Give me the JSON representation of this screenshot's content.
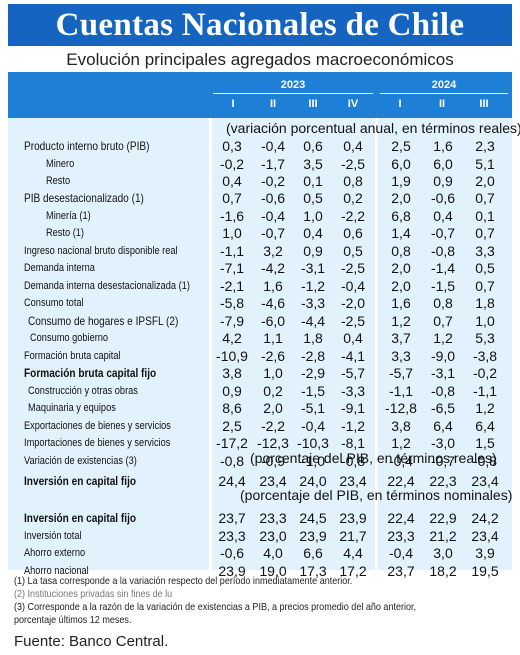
{
  "title": "Cuentas Nacionales de Chile",
  "subtitle": "Evolución principales agregados macroeconómicos",
  "years": [
    "2023",
    "2024"
  ],
  "quarters_2023": [
    "I",
    "II",
    "III",
    "IV"
  ],
  "quarters_2024": [
    "I",
    "II",
    "III"
  ],
  "units": {
    "var": "(variación porcentual anual, en términos reales)",
    "real": "(porcentaje del PIB, en términos reales)",
    "nominal": "(porcentaje del PIB, en términos nominales)"
  },
  "rows": [
    {
      "label": "Producto interno bruto (PIB)",
      "values": [
        "0,3",
        "-0,4",
        "0,6",
        "0,4",
        "2,5",
        "1,6",
        "2,3"
      ]
    },
    {
      "label": "Minero",
      "values": [
        "-0,2",
        "-1,7",
        "3,5",
        "-2,5",
        "6,0",
        "6,0",
        "5,1"
      ]
    },
    {
      "label": "Resto",
      "values": [
        "0,4",
        "-0,2",
        "0,1",
        "0,8",
        "1,9",
        "0,9",
        "2,0"
      ]
    },
    {
      "label": "PIB desestacionalizado (1)",
      "values": [
        "0,7",
        "-0,6",
        "0,5",
        "0,2",
        "2,0",
        "-0,6",
        "0,7"
      ]
    },
    {
      "label": "Minería (1)",
      "values": [
        "-1,6",
        "-0,4",
        "1,0",
        "-2,2",
        "6,8",
        "0,4",
        "0,1"
      ]
    },
    {
      "label": "Resto (1)",
      "values": [
        "1,0",
        "-0,7",
        "0,4",
        "0,6",
        "1,4",
        "-0,7",
        "0,7"
      ]
    },
    {
      "label": "Ingreso nacional bruto disponible real",
      "values": [
        "-1,1",
        "3,2",
        "0,9",
        "0,5",
        "0,8",
        "-0,8",
        "3,3"
      ]
    },
    {
      "label": "Demanda interna",
      "values": [
        "-7,1",
        "-4,2",
        "-3,1",
        "-2,5",
        "2,0",
        "-1,4",
        "0,5"
      ]
    },
    {
      "label": "Demanda interna desestacionalizada (1)",
      "values": [
        "-2,1",
        "1,6",
        "-1,2",
        "-0,4",
        "2,0",
        "-1,5",
        "0,7"
      ]
    },
    {
      "label": "Consumo total",
      "values": [
        "-5,8",
        "-4,6",
        "-3,3",
        "-2,0",
        "1,6",
        "0,8",
        "1,8"
      ]
    },
    {
      "label": "Consumo de hogares e IPSFL (2)",
      "values": [
        "-7,9",
        "-6,0",
        "-4,4",
        "-2,5",
        "1,2",
        "0,7",
        "1,0"
      ]
    },
    {
      "label": "Consumo gobierno",
      "values": [
        "4,2",
        "1,1",
        "1,8",
        "0,4",
        "3,7",
        "1,2",
        "5,3"
      ]
    },
    {
      "label": "Formación bruta capital",
      "values": [
        "-10,9",
        "-2,6",
        "-2,8",
        "-4,1",
        "3,3",
        "-9,0",
        "-3,8"
      ]
    },
    {
      "label": "Formación bruta capital fijo",
      "values": [
        "3,8",
        "1,0",
        "-2,9",
        "-5,7",
        "-5,7",
        "-3,1",
        "-0,2"
      ]
    },
    {
      "label": "Construcción y otras obras",
      "values": [
        "0,9",
        "0,2",
        "-1,5",
        "-3,3",
        "-1,1",
        "-0,8",
        "-1,1"
      ]
    },
    {
      "label": "Maquinaria y equipos",
      "values": [
        "8,6",
        "2,0",
        "-5,1",
        "-9,1",
        "-12,8",
        "-6,5",
        "1,2"
      ]
    },
    {
      "label": "Exportaciones de bienes y servicios",
      "values": [
        "2,5",
        "-2,2",
        "-0,4",
        "-1,2",
        "3,8",
        "6,4",
        "6,4"
      ]
    },
    {
      "label": "Importaciones de bienes y servicios",
      "values": [
        "-17,2",
        "-12,3",
        "-10,3",
        "-8,1",
        "1,2",
        "-3,0",
        "1,5"
      ]
    },
    {
      "label": "Variación de existencias (3)",
      "values": [
        "-0,8",
        "-0,9",
        "-1,0",
        "-0,8",
        "-0,4",
        "-0,7",
        "-0,8"
      ]
    },
    {
      "label": "Inversión en capital fijo",
      "values": [
        "24,4",
        "23,4",
        "24,0",
        "23,4",
        "22,4",
        "22,3",
        "23,4"
      ]
    },
    {
      "label": "Inversión en capital fijo",
      "values": [
        "23,7",
        "23,3",
        "24,5",
        "23,9",
        "22,4",
        "22,9",
        "24,2"
      ]
    },
    {
      "label": "Inversión total",
      "values": [
        "23,3",
        "23,0",
        "23,9",
        "21,7",
        "23,3",
        "21,2",
        "23,4"
      ]
    },
    {
      "label": "Ahorro externo",
      "values": [
        "-0,6",
        "4,0",
        "6,6",
        "4,4",
        "-0,4",
        "3,0",
        "3,9"
      ]
    },
    {
      "label": "Ahorro nacional",
      "values": [
        "23,9",
        "19,0",
        "17,3",
        "17,2",
        "23,7",
        "18,2",
        "19,5"
      ]
    }
  ],
  "notes": [
    "(1) La tasa corresponde a la variación respecto del período inmediatamente anterior.",
    "(2) Instituciones privadas sin fines de lu",
    "(3) Corresponde a la razón de la variación de existencias a PIB, a precios promedio del año anterior,",
    "porcentaje últimos 12 meses."
  ],
  "source": "Fuente: Banco Central."
}
